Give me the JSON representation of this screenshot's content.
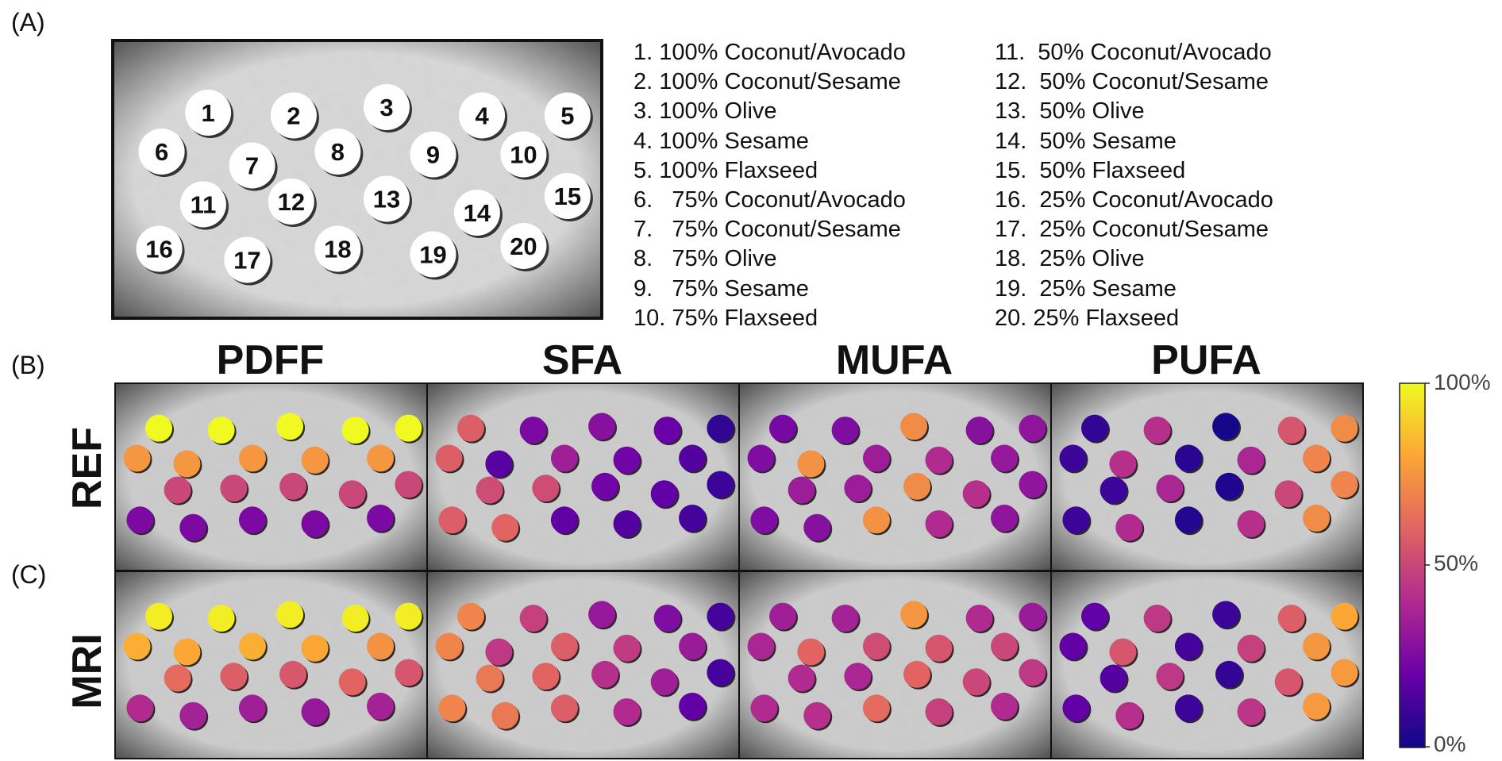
{
  "panels": {
    "a": "(A)",
    "b": "(B)",
    "c": "(C)"
  },
  "phantom": {
    "labels": [
      "1",
      "2",
      "3",
      "4",
      "5",
      "6",
      "7",
      "8",
      "9",
      "10",
      "11",
      "12",
      "13",
      "14",
      "15",
      "16",
      "17",
      "18",
      "19",
      "20"
    ]
  },
  "legend": {
    "left": [
      "1. 100% Coconut/Avocado",
      "2. 100% Coconut/Sesame",
      "3. 100% Olive",
      "4. 100% Sesame",
      "5. 100% Flaxseed",
      "6.   75% Coconut/Avocado",
      "7.   75% Coconut/Sesame",
      "8.   75% Olive",
      "9.   75% Sesame",
      "10. 75% Flaxseed"
    ],
    "right": [
      "11.  50% Coconut/Avocado",
      "12.  50% Coconut/Sesame",
      "13.  50% Olive",
      "14.  50% Sesame",
      "15.  50% Flaxseed",
      "16.  25% Coconut/Avocado",
      "17.  25% Coconut/Sesame",
      "18.  25% Olive",
      "19.  25% Sesame",
      "20. 25% Flaxseed"
    ]
  },
  "columns": [
    "PDFF",
    "SFA",
    "MUFA",
    "PUFA"
  ],
  "rows": [
    "REF",
    "MRI"
  ],
  "colorbar": {
    "max": "100%",
    "mid": "50%",
    "min": "0%",
    "colors": [
      "#0d0887",
      "#6a00a8",
      "#b12a90",
      "#e16462",
      "#fca636",
      "#f0f921"
    ]
  },
  "maps": {
    "REF": {
      "PDFF": [
        100,
        100,
        100,
        100,
        100,
        75,
        75,
        75,
        75,
        75,
        50,
        50,
        50,
        50,
        50,
        25,
        25,
        25,
        25,
        25
      ],
      "SFA": [
        58,
        25,
        28,
        20,
        8,
        58,
        16,
        35,
        22,
        15,
        52,
        52,
        22,
        18,
        10,
        58,
        60,
        18,
        15,
        12
      ],
      "MUFA": [
        24,
        26,
        72,
        28,
        30,
        26,
        74,
        34,
        40,
        32,
        34,
        34,
        72,
        42,
        30,
        26,
        28,
        74,
        40,
        30
      ],
      "PUFA": [
        8,
        42,
        2,
        55,
        72,
        10,
        42,
        6,
        38,
        70,
        10,
        38,
        4,
        50,
        70,
        10,
        40,
        5,
        42,
        72
      ]
    },
    "MRI": {
      "PDFF": [
        97,
        97,
        97,
        97,
        97,
        82,
        80,
        82,
        80,
        74,
        62,
        58,
        56,
        60,
        55,
        40,
        36,
        35,
        32,
        36
      ],
      "SFA": [
        70,
        48,
        32,
        26,
        12,
        70,
        45,
        58,
        46,
        33,
        66,
        60,
        42,
        35,
        12,
        70,
        66,
        58,
        40,
        18
      ],
      "MUFA": [
        35,
        36,
        75,
        40,
        33,
        38,
        60,
        52,
        55,
        50,
        40,
        38,
        60,
        50,
        45,
        40,
        42,
        62,
        48,
        40
      ],
      "PUFA": [
        18,
        45,
        10,
        58,
        80,
        18,
        55,
        12,
        48,
        75,
        15,
        45,
        8,
        55,
        76,
        18,
        42,
        10,
        44,
        76
      ]
    }
  }
}
